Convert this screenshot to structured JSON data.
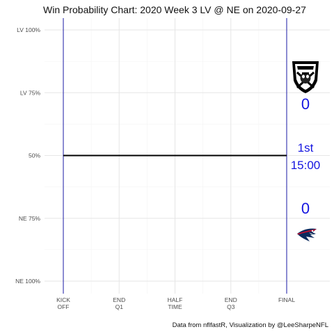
{
  "chart_data": {
    "type": "line",
    "title": "Win Probability Chart: 2020 Week 3 LV @ NE on 2020-09-27",
    "caption": "Data from nflfastR, Visualization by @LeeSharpeNFL",
    "x_ticks": [
      "KICK\nOFF",
      "END\nQ1",
      "HALF\nTIME",
      "END\nQ3",
      "FINAL"
    ],
    "y_ticks": [
      "LV 100%",
      "LV 75%",
      "50%",
      "NE 75%",
      "NE 100%"
    ],
    "y_tick_values": [
      1.0,
      0.75,
      0.5,
      0.25,
      0.0
    ],
    "xlim": [
      0,
      3600
    ],
    "ylim": [
      0,
      1
    ],
    "grid": true,
    "series": [
      {
        "x": [
          0,
          3600
        ],
        "y": [
          0.5,
          0.5
        ],
        "color": "#000000"
      }
    ],
    "markers": [
      {
        "x": 0,
        "color": "#1a1aa6"
      },
      {
        "x": 3600,
        "color": "#1a1aa6"
      }
    ],
    "away_team": {
      "abbr": "LV",
      "score": "0",
      "logo_icon": "raiders-logo-icon"
    },
    "home_team": {
      "abbr": "NE",
      "score": "0",
      "logo_icon": "patriots-logo-icon"
    },
    "game_state": {
      "quarter": "1st",
      "clock": "15:00"
    },
    "score_color": "#1515e0"
  }
}
